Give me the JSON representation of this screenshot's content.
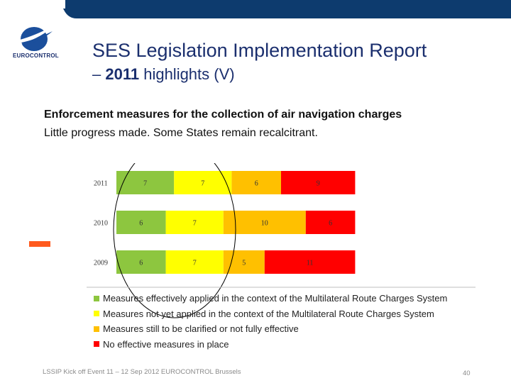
{
  "header": {
    "logo_text": "EUROCONTROL",
    "title_line1": "SES Legislation Implementation Report",
    "title_line2_prefix": "– ",
    "title_line2_bold": "2011",
    "title_line2_rest": " highlights (V)",
    "brand_color": "#0d3b6e"
  },
  "body": {
    "line1": "Enforcement measures for the collection of air navigation charges",
    "line2": "Little progress made. Some States remain recalcitrant."
  },
  "chart_data": {
    "type": "bar",
    "orientation": "horizontal",
    "stacked": true,
    "categories": [
      "2011",
      "2010",
      "2009"
    ],
    "series": [
      {
        "name": "Measures effectively applied in the context of the Multilateral Route Charges System",
        "color": "#8dc63f",
        "values": [
          7,
          6,
          6
        ]
      },
      {
        "name": "Measures not yet applied in the context of the Multilateral Route Charges System",
        "color": "#ffff00",
        "values": [
          7,
          7,
          7
        ]
      },
      {
        "name": "Measures still to be clarified or not fully effective",
        "color": "#ffc000",
        "values": [
          6,
          10,
          5
        ]
      },
      {
        "name": "No effective measures in place",
        "color": "#ff0000",
        "values": [
          9,
          6,
          11
        ]
      }
    ],
    "legend_position": "bottom"
  },
  "footer": {
    "text": "LSSIP Kick off Event 11 – 12 Sep 2012 EUROCONTROL Brussels",
    "page": "40"
  }
}
